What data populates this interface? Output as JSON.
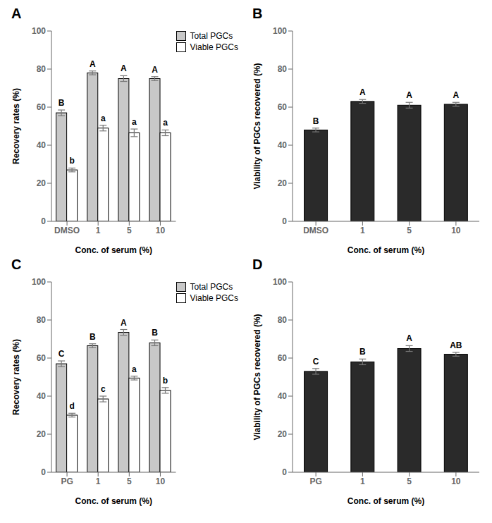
{
  "chart_data": [
    {
      "type": "bar",
      "title": "A",
      "categories": [
        "DMSO",
        "1",
        "5",
        "10"
      ],
      "series": [
        {
          "name": "Total PGCs",
          "color": "#c8c8c8",
          "values": [
            57,
            78,
            75,
            75
          ],
          "errors": [
            1.5,
            1.0,
            1.5,
            1.0
          ],
          "annotations": [
            "B",
            "A",
            "A",
            "A"
          ]
        },
        {
          "name": "Viable PGCs",
          "color": "#ffffff",
          "values": [
            27,
            49,
            46.5,
            46.5
          ],
          "errors": [
            1.0,
            1.5,
            2.0,
            1.5
          ],
          "annotations": [
            "b",
            "a",
            "a",
            "a"
          ]
        }
      ],
      "xlabel": "Conc. of serum (%)",
      "ylabel": "Recovery rates (%)",
      "ylim": [
        0,
        100
      ],
      "yticks": [
        0,
        20,
        40,
        60,
        80,
        100
      ],
      "legend": "upper right"
    },
    {
      "type": "bar",
      "title": "B",
      "categories": [
        "DMSO",
        "1",
        "5",
        "10"
      ],
      "values": [
        48,
        63,
        61,
        61.5
      ],
      "errors": [
        1.0,
        1.0,
        1.5,
        1.0
      ],
      "annotations": [
        "B",
        "A",
        "A",
        "A"
      ],
      "color": "#2a2a2a",
      "xlabel": "Conc. of serum (%)",
      "ylabel": "Viability of PGCs recovered (%)",
      "ylim": [
        0,
        100
      ],
      "yticks": [
        0,
        20,
        40,
        60,
        80,
        100
      ]
    },
    {
      "type": "bar",
      "title": "C",
      "categories": [
        "PG",
        "1",
        "5",
        "10"
      ],
      "series": [
        {
          "name": "Total PGCs",
          "color": "#c8c8c8",
          "values": [
            57,
            66.5,
            73.5,
            68
          ],
          "errors": [
            1.5,
            1.0,
            1.5,
            1.5
          ],
          "annotations": [
            "C",
            "B",
            "A",
            "B"
          ]
        },
        {
          "name": "Viable PGCs",
          "color": "#ffffff",
          "values": [
            30,
            38.5,
            49.5,
            43
          ],
          "errors": [
            1.0,
            1.5,
            1.0,
            1.5
          ],
          "annotations": [
            "d",
            "c",
            "a",
            "b"
          ]
        }
      ],
      "xlabel": "Conc. of serum (%)",
      "ylabel": "Recovery rates (%)",
      "ylim": [
        0,
        100
      ],
      "yticks": [
        0,
        20,
        40,
        60,
        80,
        100
      ],
      "legend": "upper right"
    },
    {
      "type": "bar",
      "title": "D",
      "categories": [
        "PG",
        "1",
        "5",
        "10"
      ],
      "values": [
        53,
        58,
        65,
        62
      ],
      "errors": [
        1.5,
        1.5,
        1.5,
        1.0
      ],
      "annotations": [
        "C",
        "B",
        "A",
        "AB"
      ],
      "color": "#2a2a2a",
      "xlabel": "Conc. of serum (%)",
      "ylabel": "Viability of PGCs recovered (%)",
      "ylim": [
        0,
        100
      ],
      "yticks": [
        0,
        20,
        40,
        60,
        80,
        100
      ]
    }
  ]
}
